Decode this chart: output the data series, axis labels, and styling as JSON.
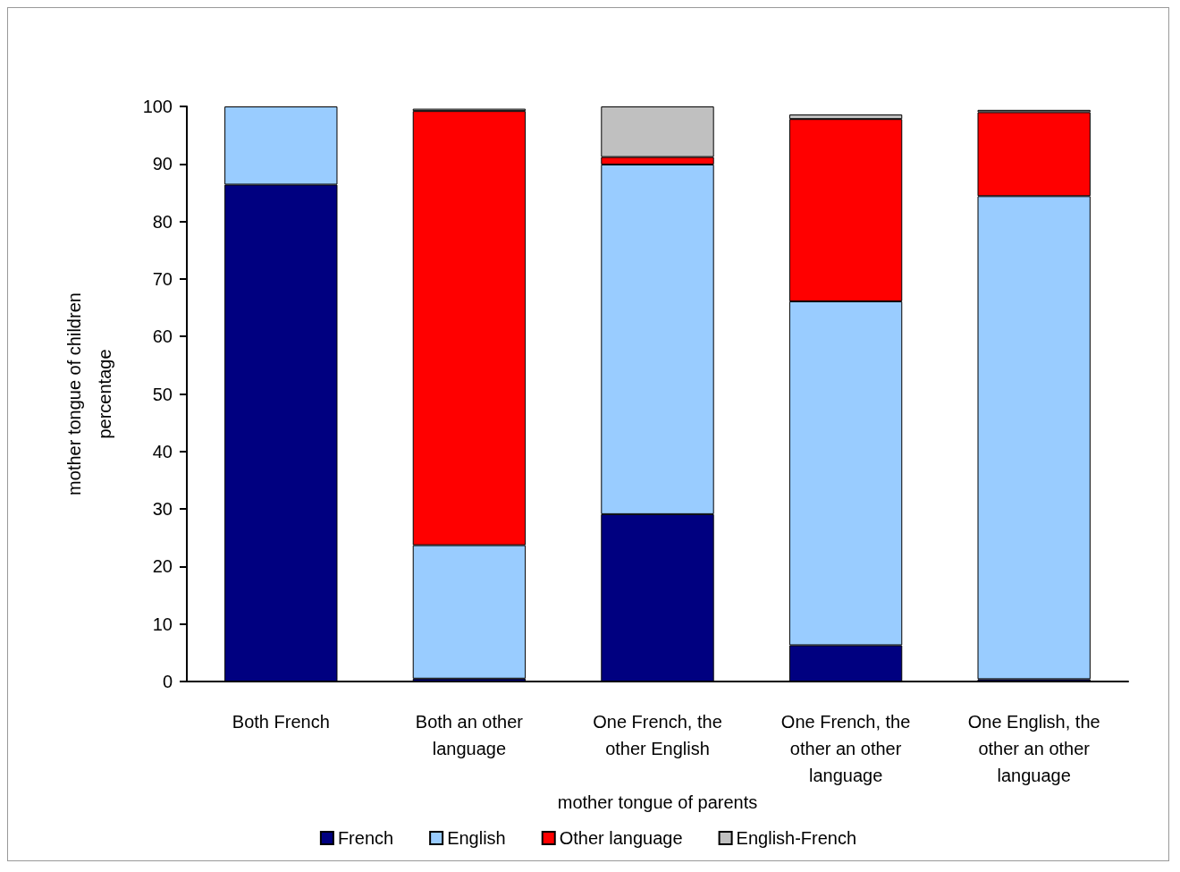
{
  "chart_data": {
    "type": "bar",
    "stacked": true,
    "xlabel": "mother tongue of parents",
    "ylabel": "mother tongue of children\npercentage",
    "categories": [
      "Both French",
      "Both an other\nlanguage",
      "One French, the\nother English",
      "One French, the\nother an other\nlanguage",
      "One English, the\nother an other\nlanguage"
    ],
    "series": [
      {
        "name": "French",
        "color": "#000080",
        "values": [
          86.4,
          0.5,
          29.1,
          6.3,
          0.4
        ]
      },
      {
        "name": "English",
        "color": "#99ccff",
        "values": [
          13.6,
          23.2,
          60.8,
          59.8,
          84.0
        ]
      },
      {
        "name": "Other language",
        "color": "#ff0000",
        "values": [
          null,
          75.5,
          1.3,
          31.7,
          14.6
        ]
      },
      {
        "name": "English-French",
        "color": "#c0c0c0",
        "values": [
          null,
          0.4,
          8.8,
          0.8,
          0.4
        ]
      }
    ],
    "ylim": [
      0,
      100
    ],
    "yticks": [
      0,
      10,
      20,
      30,
      40,
      50,
      60,
      70,
      80,
      90,
      100
    ],
    "grid": false,
    "legend": "bottom"
  }
}
